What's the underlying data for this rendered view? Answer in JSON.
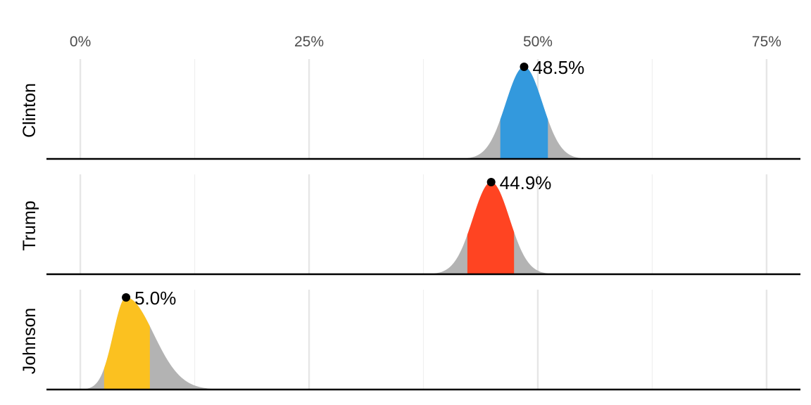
{
  "chart_data": {
    "type": "area",
    "title": "",
    "xlabel": "",
    "ylabel": "",
    "xlim": [
      -3.7,
      78.7
    ],
    "x_ticks": [
      {
        "value": 0,
        "label": "0%"
      },
      {
        "value": 25,
        "label": "25%"
      },
      {
        "value": 50,
        "label": "50%"
      },
      {
        "value": 75,
        "label": "75%"
      }
    ],
    "x_minor_ticks": [
      12.5,
      37.5,
      62.5
    ],
    "x_axis_position": "top",
    "grid": true,
    "legend": "none",
    "series": [
      {
        "name": "Clinton",
        "estimate": 48.5,
        "label": "48.5%",
        "sd": 2.0,
        "skew_right": 1.0,
        "interval": [
          45.9,
          51.1
        ],
        "color": "#3399dd"
      },
      {
        "name": "Trump",
        "estimate": 44.9,
        "label": "44.9%",
        "sd": 2.0,
        "skew_right": 1.0,
        "interval": [
          42.3,
          47.4
        ],
        "color": "#ff4422"
      },
      {
        "name": "Johnson",
        "estimate": 5.0,
        "label": "5.0%",
        "sd_left": 1.4,
        "sd_right": 3.0,
        "interval": [
          2.6,
          7.6
        ],
        "color": "#fbc120"
      }
    ],
    "tail_color": "#b3b3b3"
  }
}
